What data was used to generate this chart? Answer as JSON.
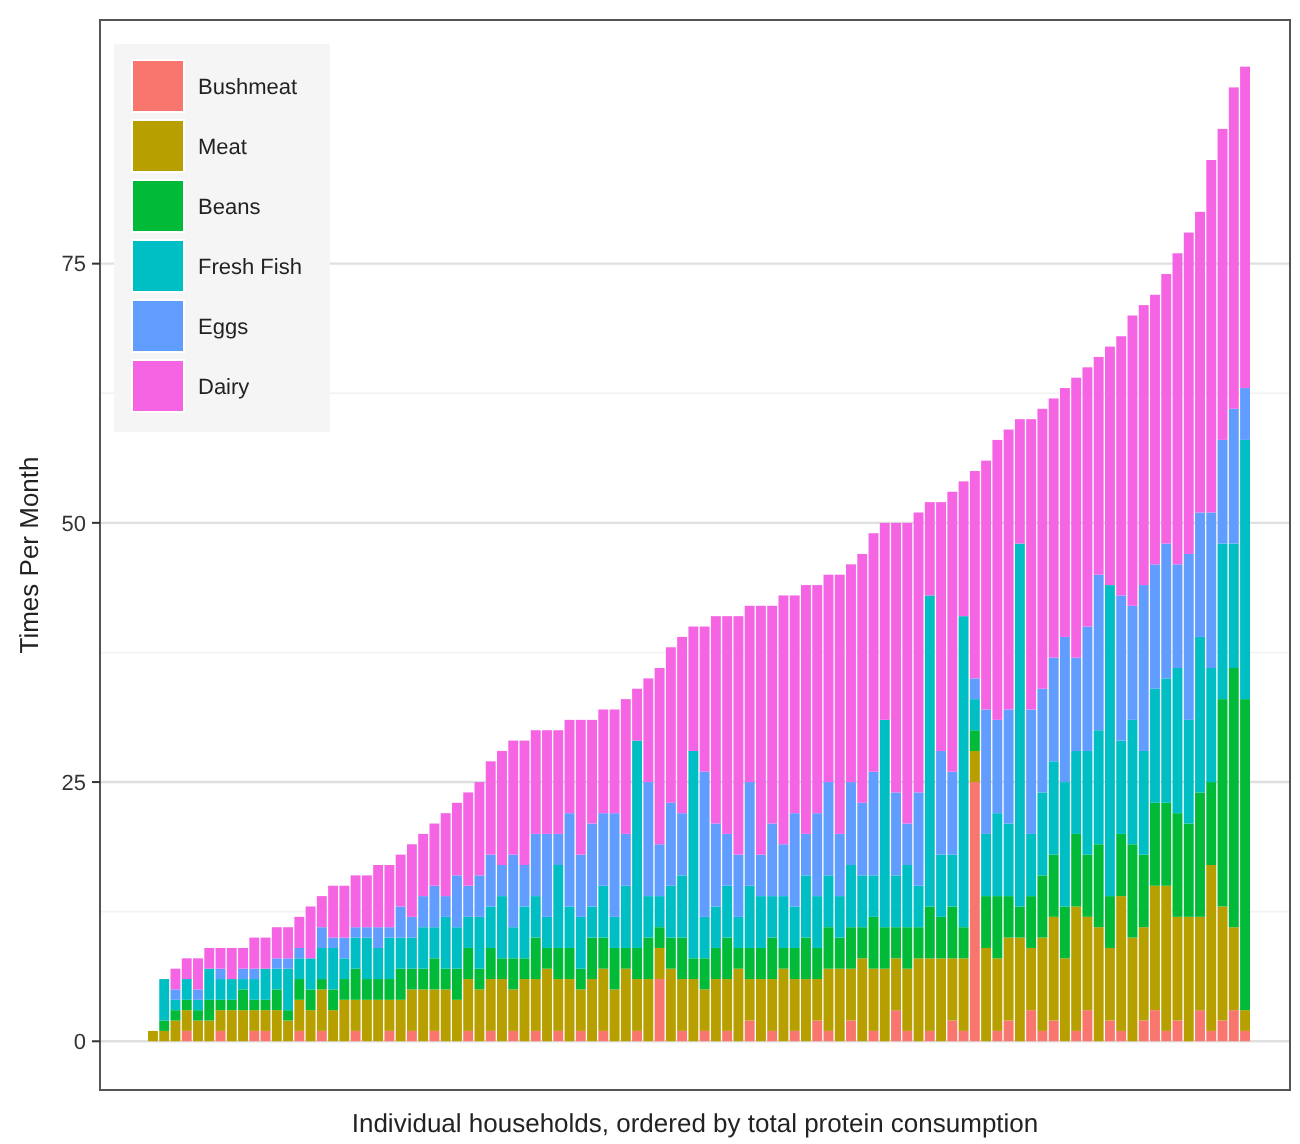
{
  "chart_data": {
    "type": "bar",
    "stacked": true,
    "xlabel": "Individual households, ordered by total protein consumption",
    "ylabel": "Times Per Month",
    "ylim": [
      -4.7,
      98.5
    ],
    "yticks": [
      0,
      25,
      50,
      75
    ],
    "grid": "y",
    "legend": "top left",
    "categories": [
      null,
      null,
      null,
      null,
      null,
      null,
      null,
      null,
      null,
      null,
      null,
      null,
      null,
      null,
      null,
      null,
      null,
      null,
      null,
      null,
      null,
      null,
      null,
      null,
      null,
      null,
      null,
      null,
      null,
      null,
      null,
      null,
      null,
      null,
      null,
      null,
      null,
      null,
      null,
      null,
      null,
      null,
      null,
      null,
      null,
      null,
      null,
      null,
      null,
      null,
      null,
      null,
      null,
      null,
      null,
      null,
      null,
      null,
      null,
      null,
      null,
      null,
      null,
      null,
      null,
      null,
      null,
      null,
      null,
      null,
      null,
      null,
      null,
      null,
      null,
      null,
      null,
      null,
      null,
      null,
      null,
      null,
      null,
      null,
      null,
      null,
      null,
      null,
      null,
      null,
      null,
      null,
      null,
      null,
      null,
      null,
      null,
      null
    ],
    "series": [
      {
        "name": "Bushmeat",
        "color": "#f8766d",
        "values": [
          0,
          0,
          0,
          1,
          0,
          0,
          1,
          0,
          0,
          1,
          1,
          0,
          0,
          1,
          0,
          1,
          0,
          0,
          1,
          0,
          0,
          1,
          0,
          1,
          0,
          1,
          0,
          0,
          1,
          0,
          1,
          0,
          1,
          0,
          1,
          0,
          1,
          0,
          1,
          0,
          1,
          0,
          0,
          1,
          0,
          6,
          0,
          1,
          0,
          1,
          0,
          1,
          0,
          2,
          0,
          1,
          0,
          1,
          0,
          2,
          1,
          0,
          2,
          0,
          1,
          0,
          3,
          1,
          0,
          1,
          0,
          2,
          1,
          25,
          0,
          1,
          2,
          0,
          3,
          1,
          2,
          0,
          1,
          3,
          0,
          2,
          1,
          0,
          2,
          3,
          1,
          2,
          0,
          3,
          1,
          2,
          3,
          1
        ]
      },
      {
        "name": "Meat",
        "color": "#b79f00",
        "values": [
          1,
          1,
          2,
          2,
          2,
          2,
          2,
          3,
          3,
          2,
          2,
          3,
          2,
          3,
          3,
          4,
          3,
          4,
          3,
          4,
          4,
          3,
          4,
          4,
          5,
          4,
          5,
          4,
          5,
          5,
          5,
          6,
          4,
          6,
          5,
          7,
          5,
          6,
          4,
          6,
          6,
          5,
          7,
          5,
          6,
          3,
          7,
          5,
          6,
          4,
          6,
          5,
          7,
          4,
          6,
          5,
          7,
          5,
          6,
          4,
          6,
          7,
          5,
          8,
          6,
          7,
          5,
          6,
          8,
          7,
          8,
          6,
          7,
          3,
          9,
          7,
          8,
          10,
          6,
          9,
          10,
          8,
          12,
          9,
          11,
          7,
          13,
          10,
          9,
          12,
          14,
          10,
          12,
          9,
          16,
          11,
          8,
          2
        ]
      },
      {
        "name": "Beans",
        "color": "#00ba38",
        "values": [
          0,
          1,
          1,
          1,
          1,
          2,
          1,
          1,
          2,
          1,
          1,
          2,
          1,
          2,
          2,
          1,
          2,
          2,
          3,
          2,
          2,
          2,
          3,
          2,
          2,
          3,
          2,
          3,
          3,
          2,
          3,
          2,
          3,
          2,
          4,
          2,
          3,
          3,
          2,
          4,
          3,
          4,
          2,
          3,
          4,
          2,
          3,
          4,
          2,
          3,
          3,
          4,
          2,
          3,
          3,
          4,
          2,
          3,
          4,
          3,
          4,
          3,
          4,
          3,
          5,
          4,
          3,
          4,
          3,
          5,
          4,
          5,
          3,
          2,
          5,
          6,
          4,
          3,
          5,
          6,
          6,
          5,
          7,
          6,
          8,
          5,
          6,
          9,
          7,
          8,
          8,
          10,
          9,
          12,
          8,
          20,
          25,
          30
        ]
      },
      {
        "name": "Fresh Fish",
        "color": "#00bfc4",
        "values": [
          0,
          4,
          1,
          2,
          1,
          3,
          2,
          2,
          1,
          2,
          3,
          2,
          4,
          2,
          3,
          3,
          4,
          2,
          3,
          4,
          3,
          4,
          3,
          3,
          4,
          3,
          5,
          4,
          3,
          5,
          4,
          6,
          3,
          5,
          4,
          3,
          8,
          4,
          5,
          3,
          5,
          3,
          6,
          20,
          4,
          3,
          5,
          6,
          20,
          4,
          4,
          5,
          3,
          6,
          5,
          4,
          5,
          4,
          6,
          5,
          5,
          4,
          6,
          5,
          4,
          20,
          5,
          6,
          4,
          30,
          6,
          5,
          30,
          3,
          6,
          8,
          7,
          35,
          6,
          8,
          9,
          12,
          8,
          10,
          11,
          30,
          9,
          12,
          10,
          11,
          12,
          14,
          10,
          15,
          11,
          15,
          12,
          25
        ]
      },
      {
        "name": "Eggs",
        "color": "#619cff",
        "values": [
          0,
          0,
          1,
          0,
          1,
          0,
          1,
          0,
          1,
          1,
          0,
          1,
          1,
          1,
          0,
          2,
          1,
          2,
          1,
          1,
          2,
          1,
          3,
          2,
          3,
          4,
          2,
          5,
          3,
          4,
          5,
          3,
          7,
          4,
          6,
          8,
          3,
          9,
          6,
          8,
          7,
          10,
          5,
          0,
          11,
          5,
          8,
          6,
          0,
          14,
          8,
          5,
          6,
          10,
          4,
          7,
          5,
          9,
          4,
          8,
          9,
          6,
          8,
          7,
          10,
          0,
          8,
          4,
          9,
          0,
          10,
          8,
          0,
          2,
          12,
          9,
          11,
          0,
          12,
          10,
          10,
          14,
          9,
          12,
          15,
          0,
          14,
          11,
          16,
          12,
          13,
          10,
          16,
          12,
          15,
          10,
          13,
          5
        ]
      },
      {
        "name": "Dairy",
        "color": "#f564e3",
        "values": [
          0,
          0,
          2,
          2,
          3,
          2,
          2,
          3,
          2,
          3,
          3,
          3,
          3,
          3,
          5,
          3,
          5,
          5,
          5,
          5,
          6,
          6,
          5,
          7,
          6,
          6,
          8,
          7,
          9,
          9,
          9,
          11,
          11,
          12,
          10,
          10,
          10,
          9,
          13,
          10,
          10,
          10,
          13,
          5,
          10,
          17,
          15,
          17,
          12,
          14,
          20,
          21,
          23,
          17,
          24,
          21,
          24,
          21,
          24,
          22,
          20,
          25,
          21,
          24,
          23,
          19,
          26,
          29,
          27,
          9,
          24,
          27,
          13,
          20,
          24,
          27,
          27,
          12,
          28,
          27,
          25,
          24,
          27,
          25,
          21,
          23,
          25,
          28,
          27,
          26,
          26,
          30,
          31,
          29,
          34,
          30,
          31,
          31
        ]
      }
    ]
  }
}
